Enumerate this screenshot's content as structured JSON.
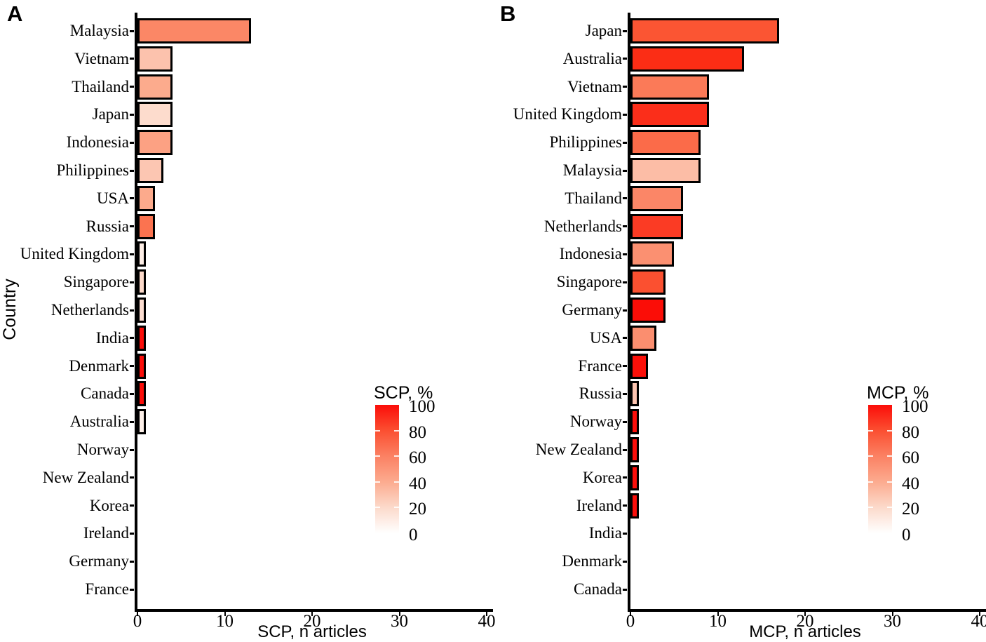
{
  "figure": {
    "background": "#ffffff",
    "axis_color": "#000000",
    "bar_border_color": "#000000"
  },
  "chart_data": [
    {
      "type": "bar",
      "orientation": "horizontal",
      "panel_label": "A",
      "xlabel": "SCP, n articles",
      "ylabel": "Country",
      "xlim": [
        0,
        40
      ],
      "x_ticks": [
        0,
        10,
        20,
        30,
        40
      ],
      "grid": false,
      "legend": {
        "title": "SCP, %",
        "ticks": [
          100,
          80,
          60,
          40,
          20,
          0
        ],
        "range": [
          0,
          100
        ],
        "position": "inside-right",
        "gradient_stops": [
          "#ffffff",
          "#fcdacb",
          "#fcab8f",
          "#fb8163",
          "#fb4f31",
          "#fb0d09"
        ]
      },
      "categories": [
        "Malaysia",
        "Vietnam",
        "Thailand",
        "Japan",
        "Indonesia",
        "Philippines",
        "USA",
        "Russia",
        "United Kingdom",
        "Singapore",
        "Netherlands",
        "India",
        "Denmark",
        "Canada",
        "Australia",
        "Norway",
        "New Zealand",
        "Korea",
        "Ireland",
        "Germany",
        "France"
      ],
      "values": [
        13,
        4,
        4,
        4,
        4,
        3,
        2,
        2,
        1,
        1,
        1,
        1,
        1,
        1,
        1,
        0,
        0,
        0,
        0,
        0,
        0
      ],
      "fill_percent": [
        61.9,
        30.8,
        40.0,
        19.0,
        44.4,
        27.3,
        40.0,
        66.7,
        10.0,
        20.0,
        14.3,
        100,
        100,
        100,
        7.1,
        0,
        0,
        0,
        0,
        0,
        0
      ],
      "bar_colors": [
        "#fb8766",
        "#fcc2ad",
        "#fcab8d",
        "#fddccd",
        "#fca183",
        "#fcc6b2",
        "#fcaa8c",
        "#fb7350",
        "#fdeee6",
        "#fcd9c9",
        "#fcddd0",
        "#fb0d09",
        "#fb0d09",
        "#fb0d09",
        "#fdf0e9",
        null,
        null,
        null,
        null,
        null,
        null
      ]
    },
    {
      "type": "bar",
      "orientation": "horizontal",
      "panel_label": "B",
      "xlabel": "MCP, n articles",
      "ylabel": "",
      "xlim": [
        0,
        40
      ],
      "x_ticks": [
        0,
        10,
        20,
        30,
        40
      ],
      "grid": false,
      "legend": {
        "title": "MCP, %",
        "ticks": [
          100,
          80,
          60,
          40,
          20,
          0
        ],
        "range": [
          0,
          100
        ],
        "position": "inside-right",
        "gradient_stops": [
          "#ffffff",
          "#fcdacb",
          "#fcab8f",
          "#fb8163",
          "#fb4f31",
          "#fb0d09"
        ]
      },
      "categories": [
        "Japan",
        "Australia",
        "Vietnam",
        "United Kingdom",
        "Philippines",
        "Malaysia",
        "Thailand",
        "Netherlands",
        "Indonesia",
        "Singapore",
        "Germany",
        "USA",
        "France",
        "Russia",
        "Norway",
        "New Zealand",
        "Korea",
        "Ireland",
        "India",
        "Denmark",
        "Canada"
      ],
      "values": [
        17,
        13,
        9,
        9,
        8,
        8,
        6,
        6,
        5,
        4,
        4,
        3,
        2,
        1,
        1,
        1,
        1,
        1,
        0,
        0,
        0
      ],
      "fill_percent": [
        81.0,
        92.9,
        69.2,
        90.0,
        72.7,
        38.1,
        60.0,
        85.7,
        55.6,
        80.0,
        100,
        60.0,
        100,
        33.3,
        100,
        100,
        100,
        100,
        0,
        0,
        0
      ],
      "bar_colors": [
        "#fb5533",
        "#fb2d15",
        "#fb7a58",
        "#fb2e1a",
        "#fb6b49",
        "#fcbda6",
        "#fb8667",
        "#fb3b24",
        "#fb9071",
        "#fb5030",
        "#fb0d07",
        "#fb8e6f",
        "#fb1009",
        "#fcc4b0",
        "#fb0f0b",
        "#fb0f0b",
        "#fb0f0b",
        "#fb0f0b",
        null,
        null,
        null
      ]
    }
  ]
}
